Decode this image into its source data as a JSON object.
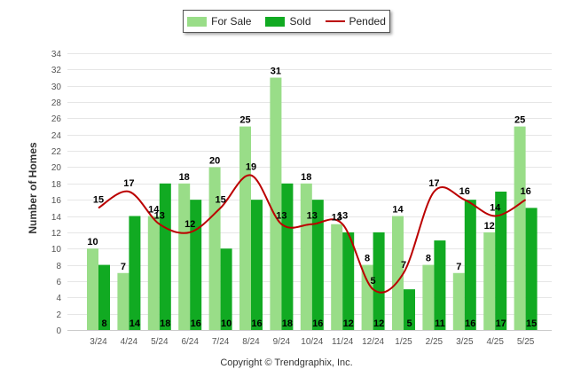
{
  "chart_data": {
    "type": "bar",
    "categories": [
      "3/24",
      "4/24",
      "5/24",
      "6/24",
      "7/24",
      "8/24",
      "9/24",
      "10/24",
      "11/24",
      "12/24",
      "1/25",
      "2/25",
      "3/25",
      "4/25",
      "5/25"
    ],
    "series": [
      {
        "name": "For Sale",
        "type": "bar",
        "color": "#99dd88",
        "values": [
          10,
          7,
          14,
          18,
          20,
          25,
          31,
          18,
          13,
          8,
          14,
          8,
          7,
          12,
          25
        ]
      },
      {
        "name": "Sold",
        "type": "bar",
        "color": "#11aa22",
        "values": [
          8,
          14,
          18,
          16,
          10,
          16,
          18,
          16,
          12,
          12,
          5,
          11,
          16,
          17,
          15
        ]
      },
      {
        "name": "Pended",
        "type": "line",
        "color": "#bb0000",
        "values": [
          15,
          17,
          13,
          12,
          15,
          19,
          13,
          13,
          13,
          5,
          7,
          17,
          16,
          14,
          16
        ]
      }
    ],
    "ylabel": "Number of Homes",
    "ylim": [
      0,
      34
    ],
    "ytick_step": 2,
    "grid": true,
    "legend_position": "top-center"
  },
  "footer": "Copyright © Trendgraphix, Inc."
}
